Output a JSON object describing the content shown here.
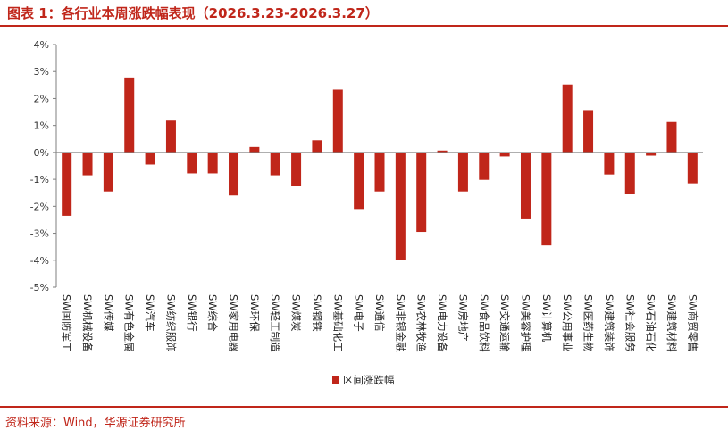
{
  "header": {
    "title": "图表 1：各行业本周涨跌幅表现（2026.3.23-2026.3.27）"
  },
  "footer": {
    "source": "资料来源：Wind，华源证券研究所"
  },
  "colors": {
    "accent": "#c0261a",
    "bar": "#c0261a",
    "axis": "#7f7f7f"
  },
  "chart_data": {
    "type": "bar",
    "title": "",
    "xlabel": "",
    "ylabel": "",
    "ylim": [
      -5,
      4
    ],
    "yticks": [
      4,
      3,
      2,
      1,
      0,
      -1,
      -2,
      -3,
      -4,
      -5
    ],
    "ytick_labels": [
      "4%",
      "3%",
      "2%",
      "1%",
      "0%",
      "-1%",
      "-2%",
      "-3%",
      "-4%",
      "-5%"
    ],
    "grid": false,
    "legend_position": "bottom",
    "categories": [
      "SW国防军工",
      "SW机械设备",
      "SW传媒",
      "SW有色金属",
      "SW汽车",
      "SW纺织服饰",
      "SW银行",
      "SW综合",
      "SW家用电器",
      "SW环保",
      "SW轻工制造",
      "SW煤炭",
      "SW钢铁",
      "SW基础化工",
      "SW电子",
      "SW通信",
      "SW非银金融",
      "SW农林牧渔",
      "SW电力设备",
      "SW房地产",
      "SW食品饮料",
      "SW交通运输",
      "SW美容护理",
      "SW计算机",
      "SW公用事业",
      "SW医药生物",
      "SW建筑装饰",
      "SW社会服务",
      "SW石油石化",
      "SW建筑材料",
      "SW商贸零售"
    ],
    "series": [
      {
        "name": "区间涨跌幅",
        "values": [
          -2.35,
          -0.85,
          -1.45,
          2.78,
          -0.45,
          1.18,
          -0.78,
          -0.78,
          -1.6,
          0.2,
          -0.85,
          -1.25,
          0.45,
          2.33,
          -2.1,
          -1.45,
          -3.98,
          -2.95,
          0.07,
          -1.45,
          -1.02,
          -0.15,
          -2.45,
          -3.45,
          2.52,
          1.57,
          -0.82,
          -1.55,
          -0.12,
          1.13,
          -1.15
        ]
      }
    ]
  }
}
